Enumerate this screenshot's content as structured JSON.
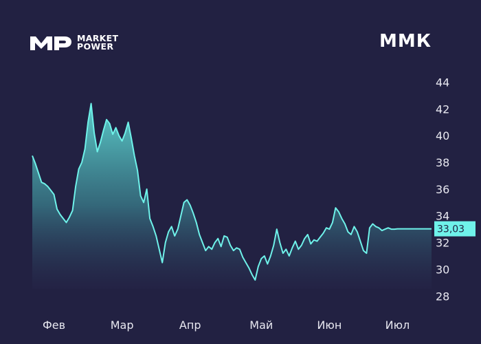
{
  "brand": {
    "line1": "MARKET",
    "line2": "POWER",
    "logo_icon": "mp-logo-icon"
  },
  "ticker": "ММК",
  "colors": {
    "background": "#222142",
    "line": "#6ff2ea",
    "label_bg": "#6ff2ea"
  },
  "chart_data": {
    "type": "area",
    "title": "",
    "xlabel": "",
    "ylabel": "",
    "ylim": [
      27.5,
      45
    ],
    "y_ticks": [
      28,
      30,
      32,
      34,
      36,
      38,
      40,
      42,
      44
    ],
    "y_tick_labels": [
      "28",
      "30",
      "32",
      "34",
      "36",
      "38",
      "40",
      "42",
      "44"
    ],
    "x_tick_labels": [
      "Фев",
      "Мар",
      "Апр",
      "Май",
      "Июн",
      "Июл"
    ],
    "x_tick_positions": [
      7,
      29,
      51,
      74,
      96,
      118
    ],
    "last_value_label": "33,03",
    "last_value": 33.03,
    "grid": false,
    "x": [
      0,
      1,
      2,
      3,
      4,
      5,
      6,
      7,
      8,
      9,
      10,
      11,
      12,
      13,
      14,
      15,
      16,
      17,
      18,
      19,
      20,
      21,
      22,
      23,
      24,
      25,
      26,
      27,
      28,
      29,
      30,
      31,
      32,
      33,
      34,
      35,
      36,
      37,
      38,
      39,
      40,
      41,
      42,
      43,
      44,
      45,
      46,
      47,
      48,
      49,
      50,
      51,
      52,
      53,
      54,
      55,
      56,
      57,
      58,
      59,
      60,
      61,
      62,
      63,
      64,
      65,
      66,
      67,
      68,
      69,
      70,
      71,
      72,
      73,
      74,
      75,
      76,
      77,
      78,
      79,
      80,
      81,
      82,
      83,
      84,
      85,
      86,
      87,
      88,
      89,
      90,
      91,
      92,
      93,
      94,
      95,
      96,
      97,
      98,
      99,
      100,
      101,
      102,
      103,
      104,
      105,
      106,
      107,
      108,
      109,
      110,
      111,
      112,
      113,
      114,
      115,
      116,
      117,
      118,
      119,
      120,
      121,
      122,
      123,
      124,
      125,
      126,
      127,
      128,
      129
    ],
    "series": [
      {
        "values": [
          38.5,
          37.9,
          37.2,
          36.5,
          36.4,
          36.2,
          35.9,
          35.6,
          34.5,
          34.1,
          33.8,
          33.5,
          33.9,
          34.4,
          36.2,
          37.5,
          38.0,
          39.0,
          41.0,
          42.4,
          40.2,
          38.8,
          39.5,
          40.4,
          41.2,
          40.9,
          40.1,
          40.6,
          40.0,
          39.6,
          40.2,
          41.0,
          39.8,
          38.5,
          37.4,
          35.5,
          35.0,
          36.0,
          33.8,
          33.2,
          32.5,
          31.5,
          30.5,
          32.0,
          32.8,
          33.2,
          32.5,
          33.0,
          34.0,
          35.0,
          35.2,
          34.8,
          34.2,
          33.5,
          32.6,
          32.0,
          31.4,
          31.7,
          31.5,
          32.0,
          32.3,
          31.7,
          32.5,
          32.4,
          31.8,
          31.4,
          31.6,
          31.5,
          30.9,
          30.5,
          30.1,
          29.6,
          29.2,
          30.2,
          30.8,
          31.0,
          30.4,
          31.0,
          31.8,
          33.0,
          32.0,
          31.2,
          31.5,
          31.0,
          31.6,
          32.1,
          31.5,
          31.8,
          32.3,
          32.6,
          31.9,
          32.2,
          32.1,
          32.4,
          32.7,
          33.1,
          33.0,
          33.5,
          34.6,
          34.3,
          33.8,
          33.4,
          32.8,
          32.6,
          33.2,
          32.8,
          32.1,
          31.4,
          31.2,
          33.1,
          33.4,
          33.2,
          33.1,
          32.9,
          33.0,
          33.1,
          33.0,
          33.0,
          33.03,
          33.03,
          33.03,
          33.03,
          33.03,
          33.03,
          33.03,
          33.03,
          33.03,
          33.03,
          33.03,
          33.03
        ]
      }
    ]
  }
}
